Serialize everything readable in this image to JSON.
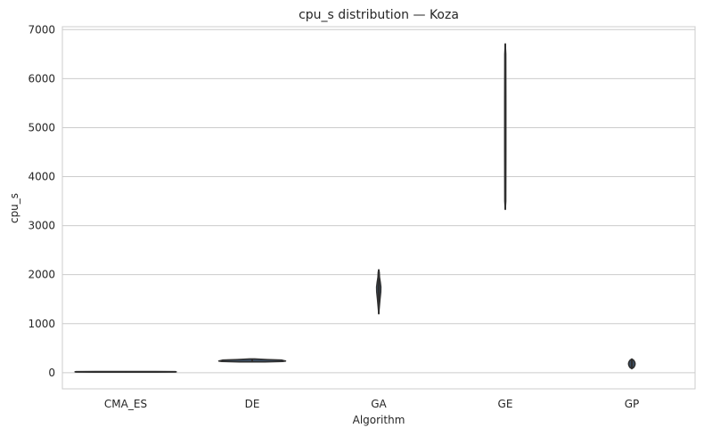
{
  "chart_data": {
    "type": "violin",
    "title": "cpu_s distribution — Koza",
    "xlabel": "Algorithm",
    "ylabel": "cpu_s",
    "categories": [
      "CMA_ES",
      "DE",
      "GA",
      "GE",
      "GP"
    ],
    "ylim": [
      -330,
      7060
    ],
    "yticks": [
      0,
      1000,
      2000,
      3000,
      4000,
      5000,
      6000,
      7000
    ],
    "grid": true,
    "violins": [
      {
        "category": "CMA_ES",
        "min": 10,
        "max": 25,
        "profile": [
          [
            10,
            0.6
          ],
          [
            12,
            0.98
          ],
          [
            17,
            1.0
          ],
          [
            22,
            0.98
          ],
          [
            25,
            0.6
          ]
        ]
      },
      {
        "category": "DE",
        "min": 220,
        "max": 280,
        "profile": [
          [
            220,
            0.25
          ],
          [
            228,
            0.6
          ],
          [
            238,
            0.66
          ],
          [
            248,
            0.62
          ],
          [
            258,
            0.58
          ],
          [
            268,
            0.3
          ],
          [
            280,
            0.05
          ]
        ]
      },
      {
        "category": "GA",
        "min": 1200,
        "max": 2100,
        "profile": [
          [
            1200,
            0.0
          ],
          [
            1350,
            0.012
          ],
          [
            1500,
            0.025
          ],
          [
            1650,
            0.04
          ],
          [
            1750,
            0.042
          ],
          [
            1850,
            0.03
          ],
          [
            1950,
            0.015
          ],
          [
            2050,
            0.01
          ],
          [
            2100,
            0.0
          ]
        ]
      },
      {
        "category": "GE",
        "min": 3330,
        "max": 6710,
        "profile": [
          [
            3330,
            0.0
          ],
          [
            3500,
            0.01
          ],
          [
            4500,
            0.012
          ],
          [
            5500,
            0.012
          ],
          [
            6500,
            0.01
          ],
          [
            6710,
            0.0
          ]
        ]
      },
      {
        "category": "GP",
        "min": 80,
        "max": 280,
        "profile": [
          [
            80,
            0.0
          ],
          [
            110,
            0.04
          ],
          [
            150,
            0.06
          ],
          [
            180,
            0.065
          ],
          [
            210,
            0.06
          ],
          [
            250,
            0.04
          ],
          [
            280,
            0.0
          ]
        ]
      }
    ]
  },
  "colors": {
    "violin_fill": "#3b4d61",
    "violin_edge": "#2f2f2f",
    "grid": "#cccccc",
    "spine": "#cccccc",
    "text": "#262626"
  }
}
